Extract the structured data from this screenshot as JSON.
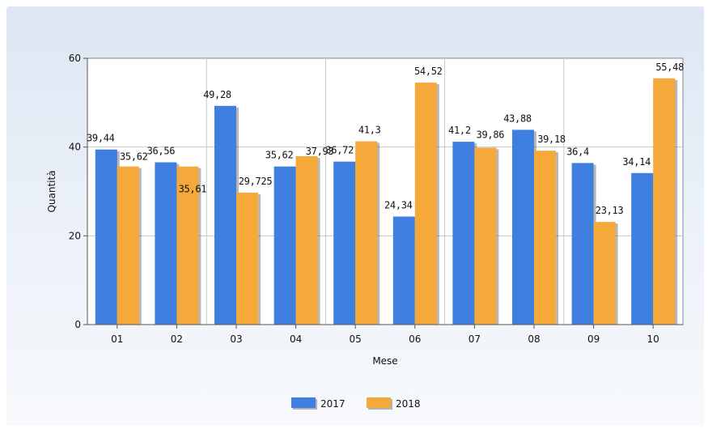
{
  "chart_data": {
    "type": "bar",
    "title": "",
    "xlabel": "Mese",
    "ylabel": "Quantità",
    "categories": [
      "01",
      "02",
      "03",
      "04",
      "05",
      "06",
      "07",
      "08",
      "09",
      "10"
    ],
    "series": [
      {
        "name": "2017",
        "color": "#3f7fe0",
        "values": [
          39.44,
          36.56,
          49.28,
          35.62,
          36.72,
          24.34,
          41.2,
          43.88,
          36.4,
          34.14
        ],
        "labels": [
          "39,44",
          "36,56",
          "49,28",
          "35,62",
          "36,72",
          "24,34",
          "41,2",
          "43,88",
          "36,4",
          "34,14"
        ]
      },
      {
        "name": "2018",
        "color": "#f5a93b",
        "values": [
          35.62,
          35.61,
          29.725,
          37.93,
          41.3,
          54.52,
          39.86,
          39.18,
          23.13,
          55.48
        ],
        "labels": [
          "35,62",
          "35,61",
          "29,725",
          "37,93",
          "41,3",
          "54,52",
          "39,86",
          "39,18",
          "23,13",
          "55,48"
        ]
      }
    ],
    "ylim": [
      0,
      60
    ],
    "yticks": [
      0,
      20,
      40,
      60
    ],
    "grid": true,
    "legend": "bottom-center"
  }
}
